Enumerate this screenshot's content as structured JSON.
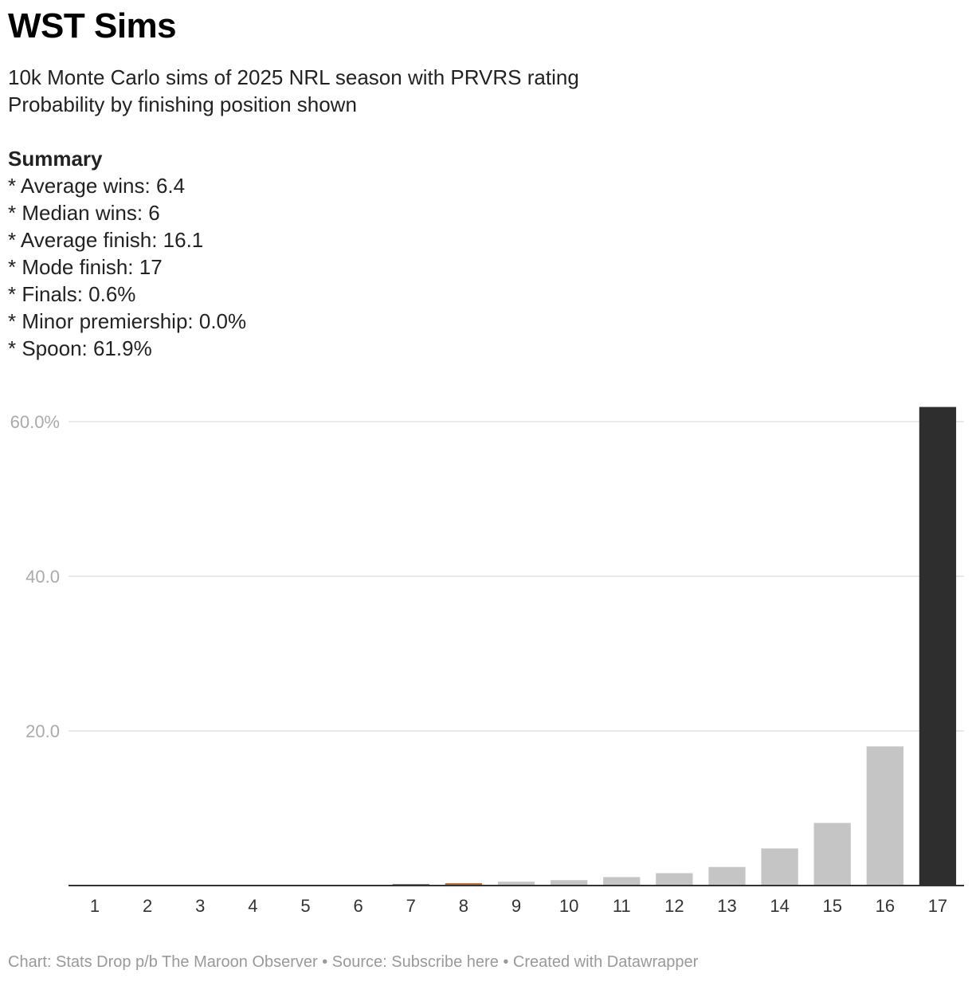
{
  "header": {
    "title": "WST Sims",
    "subtitle_lines": [
      "10k Monte Carlo sims of 2025 NRL season with PRVRS rating",
      "Probability by finishing position shown"
    ],
    "summary_heading": "Summary",
    "summary_lines": [
      "* Average wins: 6.4",
      "* Median wins: 6",
      "* Average finish: 16.1",
      "* Mode finish: 17",
      "* Finals: 0.6%",
      "* Minor premiership: 0.0%",
      "* Spoon: 61.9%"
    ]
  },
  "footer": {
    "text": "Chart: Stats Drop p/b The Maroon Observer • Source: Subscribe here • Created with Datawrapper"
  },
  "chart_data": {
    "type": "bar",
    "categories": [
      "1",
      "2",
      "3",
      "4",
      "5",
      "6",
      "7",
      "8",
      "9",
      "10",
      "11",
      "12",
      "13",
      "14",
      "15",
      "16",
      "17"
    ],
    "values": [
      0,
      0,
      0,
      0,
      0,
      0,
      0.2,
      0.3,
      0.5,
      0.7,
      1.1,
      1.6,
      2.4,
      4.8,
      8.1,
      18.0,
      61.9
    ],
    "colors": [
      "#c5c5c5",
      "#c5c5c5",
      "#c5c5c5",
      "#c5c5c5",
      "#c5c5c5",
      "#c5c5c5",
      "#c0642a",
      "#c0642a",
      "#c5c5c5",
      "#c5c5c5",
      "#c5c5c5",
      "#c5c5c5",
      "#c5c5c5",
      "#c5c5c5",
      "#c5c5c5",
      "#c5c5c5",
      "#2e2e2e"
    ],
    "yticks": [
      20,
      40,
      60
    ],
    "ytick_labels": [
      "20.0",
      "40.0",
      "60.0%"
    ],
    "ylim": [
      0,
      62
    ],
    "grid": true,
    "xlabel": "",
    "ylabel": ""
  }
}
